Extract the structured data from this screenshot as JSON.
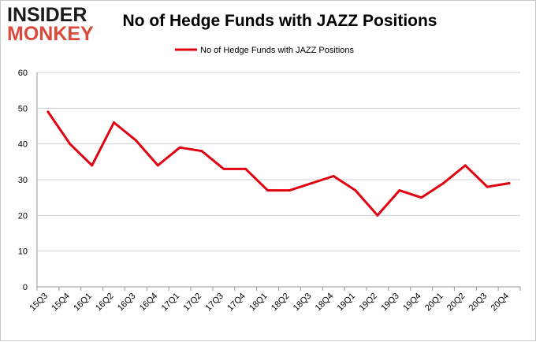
{
  "logo": {
    "line1": "INSIDER",
    "line2": "MONKEY"
  },
  "colors": {
    "series": "#e0000f",
    "grid": "#cfcfcf",
    "axis": "#999999",
    "logo_red": "#d94a3a"
  },
  "chart_data": {
    "type": "line",
    "title": "No of Hedge Funds with JAZZ Positions",
    "xlabel": "",
    "ylabel": "",
    "ylim": [
      0,
      60
    ],
    "yticks": [
      0,
      10,
      20,
      30,
      40,
      50,
      60
    ],
    "grid": true,
    "legend_position": "top-center",
    "categories": [
      "15Q3",
      "15Q4",
      "16Q1",
      "16Q2",
      "16Q3",
      "16Q4",
      "17Q1",
      "17Q2",
      "17Q3",
      "17Q4",
      "18Q1",
      "18Q2",
      "18Q3",
      "18Q4",
      "19Q1",
      "19Q2",
      "19Q3",
      "19Q4",
      "20Q1",
      "20Q2",
      "20Q3",
      "20Q4"
    ],
    "series": [
      {
        "name": "No of Hedge Funds with JAZZ Positions",
        "values": [
          49,
          40,
          34,
          46,
          41,
          34,
          39,
          38,
          33,
          33,
          27,
          27,
          29,
          31,
          27,
          20,
          27,
          25,
          29,
          34,
          28,
          29
        ]
      }
    ]
  }
}
